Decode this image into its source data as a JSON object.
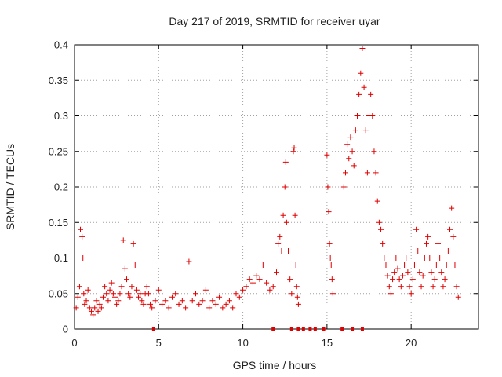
{
  "chart_data": {
    "type": "scatter",
    "title": "Day 217 of 2019, SRMTID for receiver uyar",
    "xlabel": "GPS time / hours",
    "ylabel": "SRMTID / TECUs",
    "xlim": [
      0,
      24
    ],
    "ylim": [
      0,
      0.4
    ],
    "xticks": [
      0,
      5,
      10,
      15,
      20
    ],
    "yticks": [
      0,
      0.05,
      0.1,
      0.15,
      0.2,
      0.25,
      0.3,
      0.35,
      0.4
    ],
    "grid": true,
    "marker": "+",
    "color": "#e00000",
    "series": [
      {
        "name": "SRMTID",
        "points": [
          [
            0.1,
            0.03
          ],
          [
            0.2,
            0.045
          ],
          [
            0.3,
            0.06
          ],
          [
            0.35,
            0.14
          ],
          [
            0.45,
            0.13
          ],
          [
            0.5,
            0.1
          ],
          [
            0.55,
            0.05
          ],
          [
            0.6,
            0.035
          ],
          [
            0.7,
            0.04
          ],
          [
            0.8,
            0.055
          ],
          [
            0.9,
            0.03
          ],
          [
            1.0,
            0.025
          ],
          [
            1.1,
            0.02
          ],
          [
            1.2,
            0.03
          ],
          [
            1.3,
            0.04
          ],
          [
            1.4,
            0.025
          ],
          [
            1.5,
            0.035
          ],
          [
            1.6,
            0.03
          ],
          [
            1.7,
            0.045
          ],
          [
            1.8,
            0.06
          ],
          [
            1.9,
            0.05
          ],
          [
            2.0,
            0.04
          ],
          [
            2.1,
            0.055
          ],
          [
            2.2,
            0.065
          ],
          [
            2.3,
            0.05
          ],
          [
            2.4,
            0.045
          ],
          [
            2.5,
            0.035
          ],
          [
            2.6,
            0.04
          ],
          [
            2.7,
            0.05
          ],
          [
            2.8,
            0.06
          ],
          [
            2.9,
            0.125
          ],
          [
            3.0,
            0.085
          ],
          [
            3.1,
            0.07
          ],
          [
            3.2,
            0.05
          ],
          [
            3.3,
            0.045
          ],
          [
            3.4,
            0.06
          ],
          [
            3.5,
            0.12
          ],
          [
            3.6,
            0.09
          ],
          [
            3.7,
            0.055
          ],
          [
            3.8,
            0.045
          ],
          [
            3.9,
            0.05
          ],
          [
            4.0,
            0.04
          ],
          [
            4.1,
            0.035
          ],
          [
            4.2,
            0.05
          ],
          [
            4.3,
            0.06
          ],
          [
            4.4,
            0.05
          ],
          [
            4.5,
            0.035
          ],
          [
            4.6,
            0.03
          ],
          [
            4.8,
            0.04
          ],
          [
            5.0,
            0.055
          ],
          [
            5.2,
            0.035
          ],
          [
            5.4,
            0.04
          ],
          [
            5.6,
            0.03
          ],
          [
            5.8,
            0.045
          ],
          [
            6.0,
            0.05
          ],
          [
            6.2,
            0.035
          ],
          [
            6.4,
            0.04
          ],
          [
            6.6,
            0.03
          ],
          [
            6.8,
            0.095
          ],
          [
            7.0,
            0.04
          ],
          [
            7.2,
            0.05
          ],
          [
            7.4,
            0.035
          ],
          [
            7.6,
            0.04
          ],
          [
            7.8,
            0.055
          ],
          [
            8.0,
            0.03
          ],
          [
            8.2,
            0.04
          ],
          [
            8.4,
            0.035
          ],
          [
            8.6,
            0.045
          ],
          [
            8.8,
            0.03
          ],
          [
            9.0,
            0.035
          ],
          [
            9.2,
            0.04
          ],
          [
            9.4,
            0.03
          ],
          [
            9.6,
            0.05
          ],
          [
            9.8,
            0.045
          ],
          [
            10.0,
            0.055
          ],
          [
            10.2,
            0.06
          ],
          [
            10.4,
            0.07
          ],
          [
            10.6,
            0.065
          ],
          [
            10.8,
            0.075
          ],
          [
            11.0,
            0.07
          ],
          [
            11.2,
            0.09
          ],
          [
            11.4,
            0.065
          ],
          [
            11.6,
            0.055
          ],
          [
            11.8,
            0.06
          ],
          [
            12.0,
            0.08
          ],
          [
            12.1,
            0.12
          ],
          [
            12.2,
            0.13
          ],
          [
            12.3,
            0.11
          ],
          [
            12.4,
            0.16
          ],
          [
            12.5,
            0.2
          ],
          [
            12.55,
            0.235
          ],
          [
            12.6,
            0.15
          ],
          [
            12.7,
            0.11
          ],
          [
            12.8,
            0.07
          ],
          [
            12.9,
            0.05
          ],
          [
            13.0,
            0.25
          ],
          [
            13.05,
            0.255
          ],
          [
            13.1,
            0.16
          ],
          [
            13.15,
            0.09
          ],
          [
            13.2,
            0.06
          ],
          [
            13.25,
            0.045
          ],
          [
            13.3,
            0.035
          ],
          [
            15.0,
            0.245
          ],
          [
            15.05,
            0.2
          ],
          [
            15.1,
            0.165
          ],
          [
            15.15,
            0.12
          ],
          [
            15.2,
            0.1
          ],
          [
            15.25,
            0.09
          ],
          [
            15.3,
            0.07
          ],
          [
            15.35,
            0.05
          ],
          [
            16.0,
            0.2
          ],
          [
            16.1,
            0.22
          ],
          [
            16.2,
            0.26
          ],
          [
            16.3,
            0.24
          ],
          [
            16.4,
            0.27
          ],
          [
            16.5,
            0.25
          ],
          [
            16.6,
            0.23
          ],
          [
            16.7,
            0.28
          ],
          [
            16.8,
            0.3
          ],
          [
            16.9,
            0.33
          ],
          [
            17.0,
            0.36
          ],
          [
            17.1,
            0.395
          ],
          [
            17.2,
            0.34
          ],
          [
            17.3,
            0.28
          ],
          [
            17.4,
            0.22
          ],
          [
            17.5,
            0.3
          ],
          [
            17.6,
            0.33
          ],
          [
            17.7,
            0.3
          ],
          [
            17.8,
            0.25
          ],
          [
            17.9,
            0.22
          ],
          [
            18.0,
            0.18
          ],
          [
            18.1,
            0.15
          ],
          [
            18.2,
            0.14
          ],
          [
            18.3,
            0.12
          ],
          [
            18.4,
            0.1
          ],
          [
            18.5,
            0.09
          ],
          [
            18.6,
            0.075
          ],
          [
            18.7,
            0.06
          ],
          [
            18.8,
            0.05
          ],
          [
            18.9,
            0.07
          ],
          [
            19.0,
            0.08
          ],
          [
            19.1,
            0.1
          ],
          [
            19.2,
            0.085
          ],
          [
            19.3,
            0.07
          ],
          [
            19.4,
            0.06
          ],
          [
            19.5,
            0.075
          ],
          [
            19.6,
            0.09
          ],
          [
            19.7,
            0.1
          ],
          [
            19.8,
            0.08
          ],
          [
            19.9,
            0.06
          ],
          [
            20.0,
            0.05
          ],
          [
            20.1,
            0.07
          ],
          [
            20.2,
            0.09
          ],
          [
            20.3,
            0.14
          ],
          [
            20.4,
            0.11
          ],
          [
            20.5,
            0.08
          ],
          [
            20.6,
            0.06
          ],
          [
            20.7,
            0.075
          ],
          [
            20.8,
            0.1
          ],
          [
            20.9,
            0.12
          ],
          [
            21.0,
            0.13
          ],
          [
            21.1,
            0.1
          ],
          [
            21.2,
            0.08
          ],
          [
            21.3,
            0.06
          ],
          [
            21.4,
            0.07
          ],
          [
            21.5,
            0.09
          ],
          [
            21.6,
            0.12
          ],
          [
            21.7,
            0.1
          ],
          [
            21.8,
            0.08
          ],
          [
            21.9,
            0.06
          ],
          [
            22.0,
            0.07
          ],
          [
            22.1,
            0.09
          ],
          [
            22.2,
            0.11
          ],
          [
            22.3,
            0.14
          ],
          [
            22.4,
            0.17
          ],
          [
            22.5,
            0.13
          ],
          [
            22.6,
            0.09
          ],
          [
            22.7,
            0.06
          ],
          [
            22.8,
            0.045
          ]
        ]
      }
    ],
    "gap_markers_x": [
      4.7,
      11.8,
      12.9,
      13.3,
      13.6,
      14.0,
      14.3,
      14.8,
      15.9,
      16.5,
      17.1
    ]
  }
}
